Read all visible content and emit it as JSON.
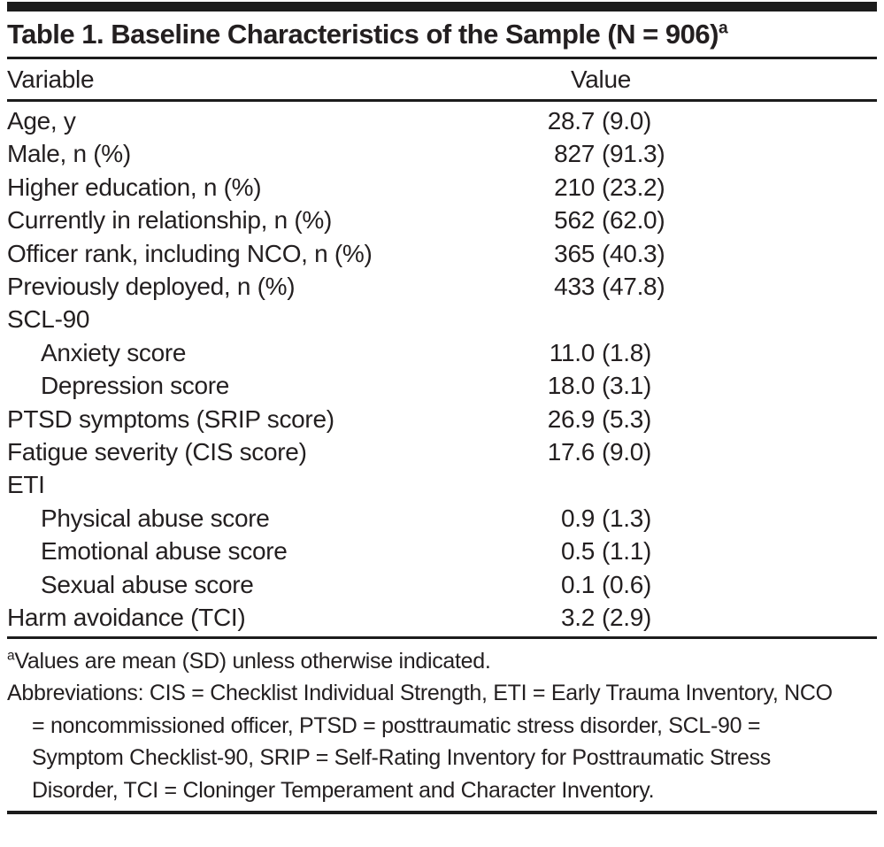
{
  "table": {
    "title": {
      "text": "Table 1. Baseline Characteristics of the Sample (N = 906)",
      "superscript": "a"
    },
    "columns": [
      "Variable",
      "Value"
    ],
    "rows": [
      {
        "label": "Age, y",
        "value": "28.7 (9.0)",
        "indent": 0,
        "section": false
      },
      {
        "label": "Male, n (%)",
        "value": "827 (91.3)",
        "indent": 0,
        "section": false
      },
      {
        "label": "Higher education, n (%)",
        "value": "210 (23.2)",
        "indent": 0,
        "section": false
      },
      {
        "label": "Currently in relationship, n (%)",
        "value": "562 (62.0)",
        "indent": 0,
        "section": false
      },
      {
        "label": "Officer rank, including NCO, n (%)",
        "value": "365 (40.3)",
        "indent": 0,
        "section": false
      },
      {
        "label": "Previously deployed, n (%)",
        "value": "433 (47.8)",
        "indent": 0,
        "section": false
      },
      {
        "label": "SCL-90",
        "value": "",
        "indent": 0,
        "section": true
      },
      {
        "label": "Anxiety score",
        "value": "11.0 (1.8)",
        "indent": 1,
        "section": false
      },
      {
        "label": "Depression score",
        "value": "18.0 (3.1)",
        "indent": 1,
        "section": false
      },
      {
        "label": "PTSD symptoms (SRIP score)",
        "value": "26.9 (5.3)",
        "indent": 0,
        "section": false
      },
      {
        "label": "Fatigue severity (CIS score)",
        "value": "17.6 (9.0)",
        "indent": 0,
        "section": false
      },
      {
        "label": "ETI",
        "value": "",
        "indent": 0,
        "section": true
      },
      {
        "label": "Physical abuse score",
        "value": "0.9 (1.3)",
        "indent": 1,
        "section": false
      },
      {
        "label": "Emotional abuse score",
        "value": "0.5 (1.1)",
        "indent": 1,
        "section": false
      },
      {
        "label": "Sexual abuse score",
        "value": "0.1 (0.6)",
        "indent": 1,
        "section": false
      },
      {
        "label": "Harm avoidance (TCI)",
        "value": "3.2 (2.9)",
        "indent": 0,
        "section": false
      }
    ],
    "footnotes": [
      {
        "superscript": "a",
        "text": "Values are mean (SD) unless otherwise indicated."
      },
      {
        "superscript": "",
        "text": "Abbreviations: CIS = Checklist Individual Strength, ETI = Early Trauma Inventory, NCO = noncommissioned officer, PTSD = posttraumatic stress disorder, SCL-90 = Symptom Checklist-90, SRIP = Self-Rating Inventory for Posttraumatic Stress Disorder, TCI = Cloninger Temperament and Character Inventory."
      }
    ],
    "colors": {
      "text": "#231f20",
      "rule": "#1c1c1c",
      "background": "#ffffff"
    }
  }
}
